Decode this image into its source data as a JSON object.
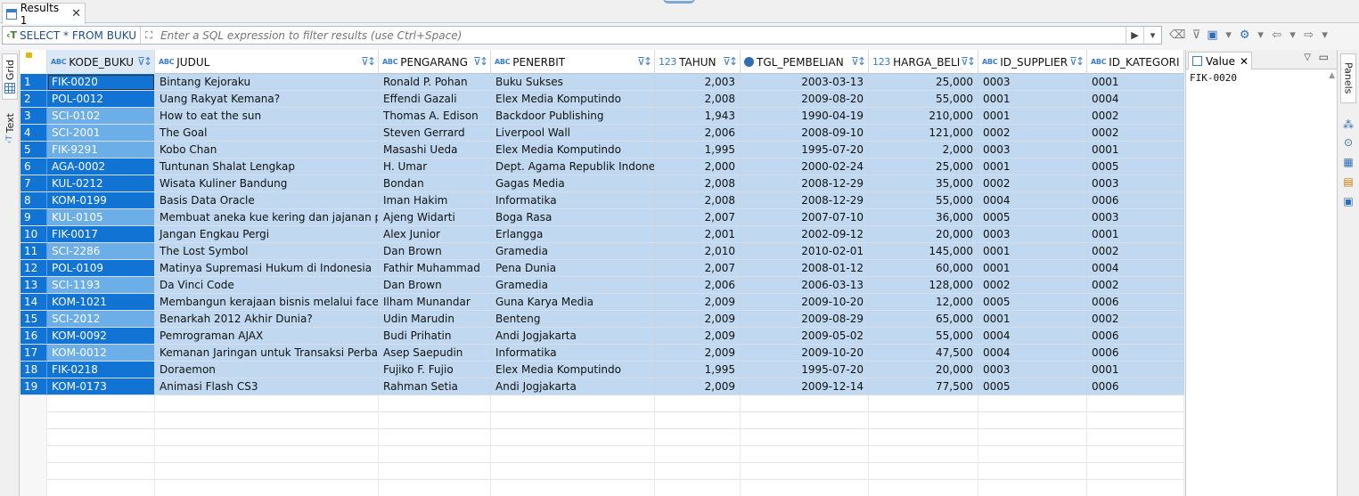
{
  "tab": {
    "label": "Results 1",
    "close": "✕"
  },
  "filter": {
    "sql_text": "SELECT * FROM BUKU",
    "placeholder": "Enter a SQL expression to filter results (use Ctrl+Space)"
  },
  "side_tabs": {
    "grid": "Grid",
    "text": "Text"
  },
  "columns": [
    {
      "name": "KODE_BUKU",
      "type": "abc"
    },
    {
      "name": "JUDUL",
      "type": "abc"
    },
    {
      "name": "PENGARANG",
      "type": "abc"
    },
    {
      "name": "PENERBIT",
      "type": "abc"
    },
    {
      "name": "TAHUN",
      "type": "123"
    },
    {
      "name": "TGL_PEMBELIAN",
      "type": "clock"
    },
    {
      "name": "HARGA_BELI",
      "type": "123"
    },
    {
      "name": "ID_SUPPLIER",
      "type": "abc"
    },
    {
      "name": "ID_KATEGORI",
      "type": "abc"
    }
  ],
  "rows": [
    [
      "1",
      "FIK-0020",
      "Bintang Kejoraku",
      "Ronald P. Pohan",
      "Buku Sukses",
      "2,003",
      "2003-03-13",
      "25,000",
      "0003",
      "0001"
    ],
    [
      "2",
      "POL-0012",
      "Uang Rakyat Kemana?",
      "Effendi Gazali",
      "Elex Media Komputindo",
      "2,008",
      "2009-08-20",
      "55,000",
      "0001",
      "0004"
    ],
    [
      "3",
      "SCI-0102",
      "How to eat the sun",
      "Thomas A. Edison",
      "Backdoor Publishing",
      "1,943",
      "1990-04-19",
      "210,000",
      "0001",
      "0002"
    ],
    [
      "4",
      "SCI-2001",
      "The Goal",
      "Steven Gerrard",
      "Liverpool Wall",
      "2,006",
      "2008-09-10",
      "121,000",
      "0002",
      "0002"
    ],
    [
      "5",
      "FIK-9291",
      "Kobo Chan",
      "Masashi Ueda",
      "Elex Media Komputindo",
      "1,995",
      "1995-07-20",
      "2,000",
      "0003",
      "0001"
    ],
    [
      "6",
      "AGA-0002",
      "Tuntunan Shalat Lengkap",
      "H. Umar",
      "Dept. Agama Republik Indonesia",
      "2,000",
      "2000-02-24",
      "25,000",
      "0001",
      "0005"
    ],
    [
      "7",
      "KUL-0212",
      "Wisata Kuliner Bandung",
      "Bondan",
      "Gagas Media",
      "2,008",
      "2008-12-29",
      "35,000",
      "0002",
      "0003"
    ],
    [
      "8",
      "KOM-0199",
      "Basis Data Oracle",
      "Iman Hakim",
      "Informatika",
      "2,008",
      "2008-12-29",
      "55,000",
      "0004",
      "0006"
    ],
    [
      "9",
      "KUL-0105",
      "Membuat aneka kue kering dan jajanan pasar",
      "Ajeng Widarti",
      "Boga Rasa",
      "2,007",
      "2007-07-10",
      "36,000",
      "0005",
      "0003"
    ],
    [
      "10",
      "FIK-0017",
      "Jangan Engkau Pergi",
      "Alex Junior",
      "Erlangga",
      "2,001",
      "2002-09-12",
      "20,000",
      "0003",
      "0001"
    ],
    [
      "11",
      "SCI-2286",
      "The Lost Symbol",
      "Dan Brown",
      "Gramedia",
      "2,010",
      "2010-02-01",
      "145,000",
      "0001",
      "0002"
    ],
    [
      "12",
      "POL-0109",
      "Matinya Supremasi Hukum di Indonesia",
      "Fathir Muhammad",
      "Pena Dunia",
      "2,007",
      "2008-01-12",
      "60,000",
      "0001",
      "0004"
    ],
    [
      "13",
      "SCI-1193",
      "Da Vinci Code",
      "Dan Brown",
      "Gramedia",
      "2,006",
      "2006-03-13",
      "128,000",
      "0002",
      "0002"
    ],
    [
      "14",
      "KOM-1021",
      "Membangun kerajaan bisnis melalui facebook",
      "Ilham Munandar",
      "Guna Karya Media",
      "2,009",
      "2009-10-20",
      "12,000",
      "0005",
      "0006"
    ],
    [
      "15",
      "SCI-2012",
      "Benarkah 2012 Akhir Dunia?",
      "Udin Marudin",
      "Benteng",
      "2,009",
      "2009-08-29",
      "65,000",
      "0001",
      "0002"
    ],
    [
      "16",
      "KOM-0092",
      "Pemrograman AJAX",
      "Budi Prihatin",
      "Andi Jogjakarta",
      "2,009",
      "2009-05-02",
      "55,000",
      "0004",
      "0006"
    ],
    [
      "17",
      "KOM-0012",
      "Kemanan Jaringan untuk Transaksi Perbankan",
      "Asep Saepudin",
      "Informatika",
      "2,009",
      "2009-10-20",
      "47,500",
      "0004",
      "0006"
    ],
    [
      "18",
      "FIK-0218",
      "Doraemon",
      "Fujiko F. Fujio",
      "Elex Media Komputindo",
      "1,995",
      "1995-07-20",
      "20,000",
      "0003",
      "0001"
    ],
    [
      "19",
      "KOM-0173",
      "Animasi Flash CS3",
      "Rahman Setia",
      "Andi Jogjakarta",
      "2,009",
      "2009-12-14",
      "77,500",
      "0005",
      "0006"
    ]
  ],
  "value_panel": {
    "tab_label": "Value",
    "close": "✕",
    "content": "FIK-0020"
  },
  "panels_tab": "Panels",
  "icons": {
    "results_tab": "grid-table-icon",
    "sql_tag": "sql-tag-icon",
    "expand": "expand-icon",
    "run_filter": "play-icon",
    "history": "chevron-down-icon"
  }
}
